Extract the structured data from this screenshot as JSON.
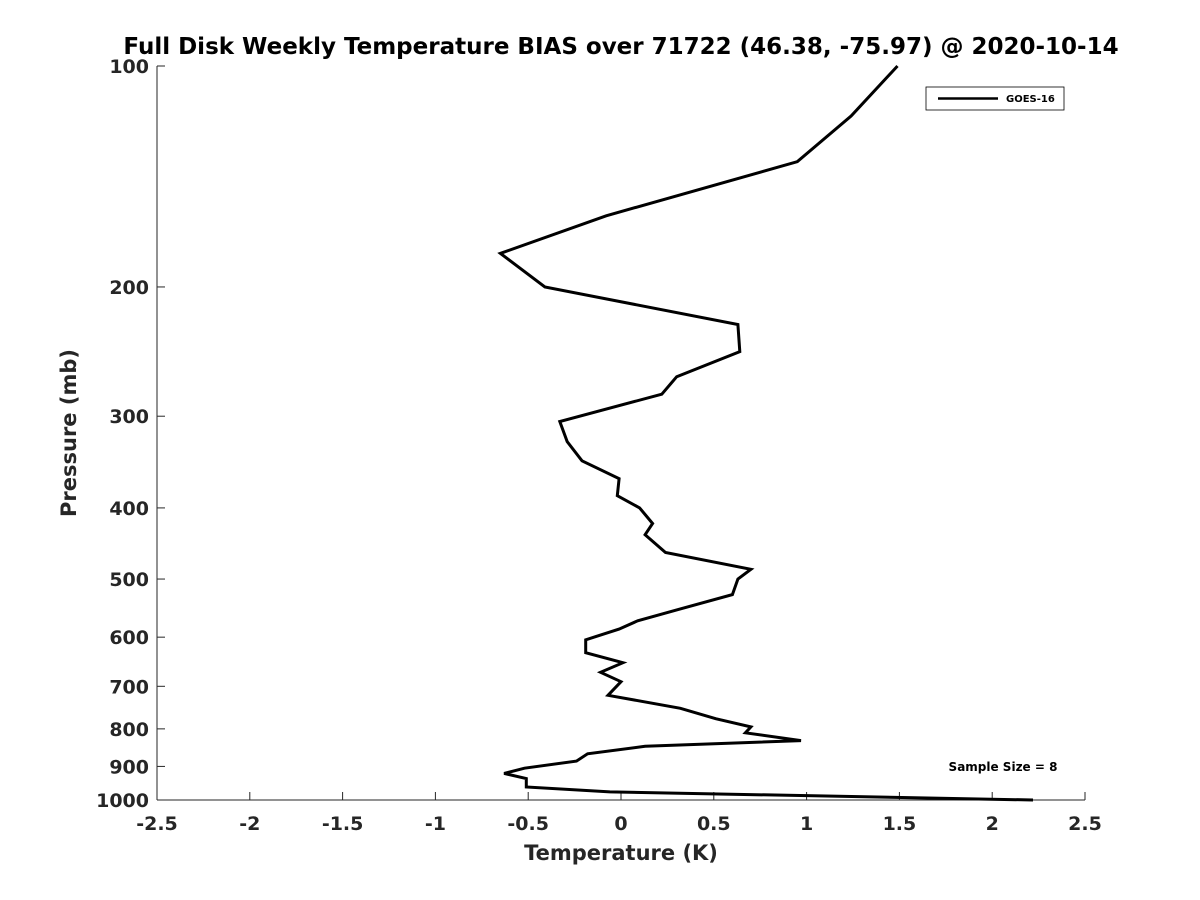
{
  "chart_data": {
    "type": "line",
    "title": "Full Disk Weekly Temperature BIAS over 71722 (46.38, -75.97) @ 2020-10-14",
    "xlabel": "Temperature (K)",
    "ylabel": "Pressure (mb)",
    "xlim": [
      -2.5,
      2.5
    ],
    "ylim": [
      1000,
      100
    ],
    "yscale": "log",
    "y_reversed": true,
    "grid": false,
    "legend_position": "top-right",
    "xticks": [
      -2.5,
      -2,
      -1.5,
      -1,
      -0.5,
      0,
      0.5,
      1,
      1.5,
      2,
      2.5
    ],
    "xtick_labels": [
      "-2.5",
      "-2",
      "-1.5",
      "-1",
      "-0.5",
      "0",
      "0.5",
      "1",
      "1.5",
      "2",
      "2.5"
    ],
    "yticks": [
      100,
      200,
      300,
      400,
      500,
      600,
      700,
      800,
      900,
      1000
    ],
    "ytick_labels": [
      "100",
      "200",
      "300",
      "400",
      "500",
      "600",
      "700",
      "800",
      "900",
      "1000"
    ],
    "series": [
      {
        "name": "GOES-16",
        "color": "#000000",
        "points": [
          [
            1.49,
            100
          ],
          [
            1.24,
            117
          ],
          [
            0.95,
            135
          ],
          [
            -0.08,
            160
          ],
          [
            -0.65,
            180
          ],
          [
            -0.41,
            200
          ],
          [
            0.63,
            225
          ],
          [
            0.64,
            245
          ],
          [
            0.3,
            265
          ],
          [
            0.22,
            280
          ],
          [
            -0.33,
            305
          ],
          [
            -0.29,
            325
          ],
          [
            -0.21,
            345
          ],
          [
            -0.01,
            365
          ],
          [
            -0.02,
            385
          ],
          [
            0.1,
            400
          ],
          [
            0.17,
            420
          ],
          [
            0.13,
            435
          ],
          [
            0.24,
            460
          ],
          [
            0.7,
            485
          ],
          [
            0.63,
            500
          ],
          [
            0.6,
            525
          ],
          [
            0.31,
            550
          ],
          [
            0.09,
            570
          ],
          [
            -0.01,
            585
          ],
          [
            -0.19,
            605
          ],
          [
            -0.19,
            630
          ],
          [
            0.01,
            650
          ],
          [
            -0.11,
            670
          ],
          [
            0.0,
            690
          ],
          [
            -0.07,
            720
          ],
          [
            0.32,
            750
          ],
          [
            0.51,
            775
          ],
          [
            0.7,
            795
          ],
          [
            0.67,
            810
          ],
          [
            0.97,
            830
          ],
          [
            0.13,
            845
          ],
          [
            -0.18,
            865
          ],
          [
            -0.24,
            885
          ],
          [
            -0.52,
            905
          ],
          [
            -0.63,
            920
          ],
          [
            -0.51,
            935
          ],
          [
            -0.51,
            960
          ],
          [
            -0.06,
            975
          ],
          [
            2.22,
            1000
          ]
        ]
      }
    ],
    "annotations": [
      "Sample Size = 8"
    ]
  }
}
